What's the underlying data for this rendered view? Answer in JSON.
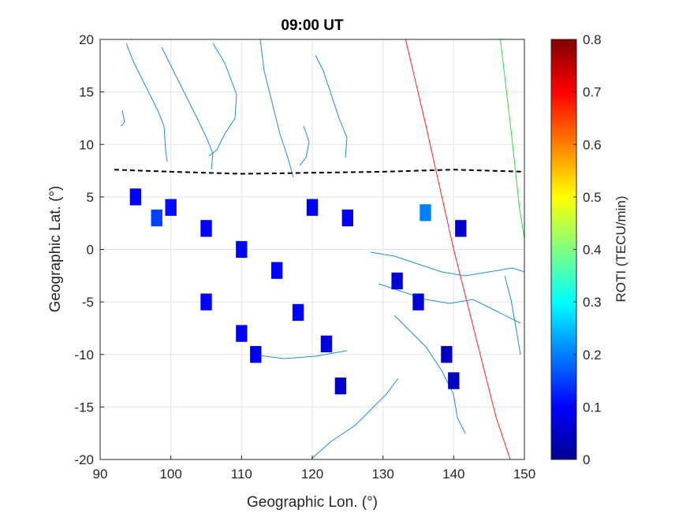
{
  "chart_data": {
    "type": "heatmap",
    "title": "09:00 UT",
    "xlabel": "Geographic Lon. (°)",
    "ylabel": "Geographic Lat. (°)",
    "xlim": [
      90,
      150
    ],
    "ylim": [
      -20,
      20
    ],
    "xticks": [
      "90",
      "100",
      "110",
      "120",
      "130",
      "140",
      "150"
    ],
    "yticks": [
      "20",
      "15",
      "10",
      "5",
      "0",
      "-5",
      "-10",
      "-15",
      "-20"
    ],
    "grid": true,
    "colorbar": {
      "label": "ROTI (TECU/min)",
      "range": [
        0,
        0.8
      ],
      "ticks": [
        "0",
        "0.1",
        "0.2",
        "0.3",
        "0.4",
        "0.5",
        "0.6",
        "0.7",
        "0.8"
      ],
      "colormap": "jet"
    },
    "roti_cells": [
      [
        95,
        5,
        0.1
      ],
      [
        100,
        4,
        0.11
      ],
      [
        105,
        2,
        0.1
      ],
      [
        110,
        0,
        0.1
      ],
      [
        115,
        -2,
        0.1
      ],
      [
        120,
        4,
        0.09
      ],
      [
        125,
        3,
        0.09
      ],
      [
        118,
        -6,
        0.1
      ],
      [
        110,
        -8,
        0.1
      ],
      [
        105,
        -5,
        0.1
      ],
      [
        98,
        3,
        0.15
      ],
      [
        112,
        -10,
        0.09
      ],
      [
        122,
        -9,
        0.08
      ],
      [
        136,
        3.5,
        0.2
      ],
      [
        141,
        2,
        0.06
      ],
      [
        124,
        -13,
        0.06
      ],
      [
        139,
        -10,
        0.05
      ],
      [
        140,
        -12.5,
        0.05
      ],
      [
        135,
        -5,
        0.07
      ],
      [
        132,
        -3,
        0.07
      ]
    ],
    "overlay_lines": [
      {
        "style": "dashed",
        "color": "#000000",
        "x": [
          92,
          100,
          110,
          120,
          130,
          140,
          150
        ],
        "y": [
          7.6,
          7.4,
          7.2,
          7.3,
          7.4,
          7.6,
          7.4
        ]
      },
      {
        "style": "solid",
        "color": "#ff2020",
        "x": [
          133.2,
          136,
          140,
          143,
          146,
          148
        ],
        "y": [
          20,
          12,
          0,
          -8,
          -16,
          -20
        ]
      },
      {
        "style": "solid",
        "color": "#33dd33",
        "x": [
          146.6,
          148,
          149.3,
          150
        ],
        "y": [
          20,
          12,
          4,
          1
        ]
      }
    ]
  }
}
